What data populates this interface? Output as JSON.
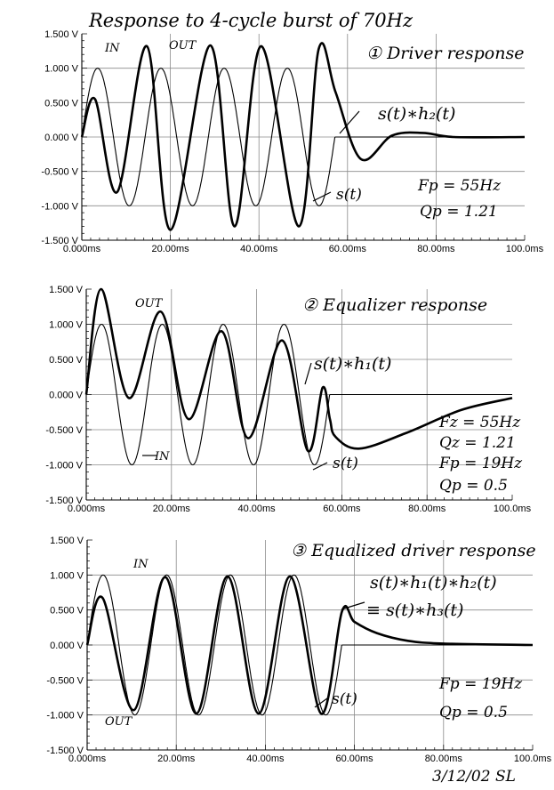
{
  "title": "Response to 4-cycle burst of 70Hz",
  "signature": "3/12/02 SL",
  "chart_data": [
    {
      "type": "line",
      "panel_label": "① Driver response",
      "x_unit": "ms",
      "xlim": [
        0,
        100
      ],
      "ylim": [
        -1.5,
        1.5
      ],
      "x_ticks": [
        "0.000ms",
        "20.00ms",
        "40.00ms",
        "60.00ms",
        "80.00ms",
        "100.0ms"
      ],
      "y_ticks": [
        "1.500 V",
        "1.000 V",
        "0.500 V",
        "0.000 V",
        "-0.500 V",
        "-1.000 V",
        "-1.500 V"
      ],
      "grid": true,
      "series": [
        {
          "name": "IN",
          "label": "s(t)",
          "burst_hz": 70,
          "cycles": 4,
          "amplitude": 1.0
        },
        {
          "name": "OUT",
          "label": "s(t)∗h₂(t)",
          "x": [
            0,
            3,
            8,
            14.7,
            20,
            29,
            34.5,
            40.5,
            49,
            53.5,
            57.3,
            63,
            70,
            77,
            84,
            100
          ],
          "y": [
            0,
            0.55,
            -0.8,
            1.32,
            -1.35,
            1.33,
            -1.3,
            1.32,
            -1.3,
            1.28,
            0.65,
            -0.32,
            0.02,
            0.06,
            0.0,
            0.0
          ]
        }
      ],
      "annotations": [
        "IN",
        "OUT",
        "s(t)∗h₂(t)",
        "s(t)",
        "Fp = 55Hz",
        "Qp = 1.21"
      ]
    },
    {
      "type": "line",
      "panel_label": "② Equalizer response",
      "x_unit": "ms",
      "xlim": [
        0,
        100
      ],
      "ylim": [
        -1.5,
        1.5
      ],
      "x_ticks": [
        "0.000ms",
        "20.00ms",
        "40.00ms",
        "60.00ms",
        "80.00ms",
        "100.0ms"
      ],
      "y_ticks": [
        "1.500 V",
        "1.000 V",
        "0.500 V",
        "0.000 V",
        "-0.500 V",
        "-1.000 V",
        "-1.500 V"
      ],
      "grid": true,
      "series": [
        {
          "name": "IN",
          "label": "s(t)",
          "burst_hz": 70,
          "cycles": 4,
          "amplitude": 1.0
        },
        {
          "name": "OUT",
          "label": "s(t)∗h₁(t)",
          "x": [
            0,
            3.5,
            10,
            17.5,
            24,
            31.8,
            38,
            46,
            52,
            55.5,
            57.2,
            58.5,
            64,
            75,
            88,
            100
          ],
          "y": [
            0,
            1.5,
            -0.05,
            1.18,
            -0.35,
            0.9,
            -0.62,
            0.77,
            -0.8,
            0.1,
            -0.35,
            -0.6,
            -0.77,
            -0.55,
            -0.22,
            -0.05
          ]
        }
      ],
      "annotations": [
        "OUT",
        "IN",
        "s(t)∗h₁(t)",
        "s(t)",
        "Fz = 55Hz",
        "Qz = 1.21",
        "Fp = 19Hz",
        "Qp = 0.5"
      ]
    },
    {
      "type": "line",
      "panel_label": "③ Equalized driver response",
      "x_unit": "ms",
      "xlim": [
        0,
        100
      ],
      "ylim": [
        -1.5,
        1.5
      ],
      "x_ticks": [
        "0.000ms",
        "20.00ms",
        "40.00ms",
        "60.00ms",
        "80.00ms",
        "100.0ms"
      ],
      "y_ticks": [
        "1.500 V",
        "1.000 V",
        "0.500 V",
        "0.000 V",
        "-0.500 V",
        "-1.000 V",
        "-1.500 V"
      ],
      "grid": true,
      "series": [
        {
          "name": "IN",
          "label": "s(t)",
          "burst_hz": 70,
          "cycles": 4,
          "amplitude": 1.0
        },
        {
          "name": "OUT",
          "label": "s(t)∗h₃(t)",
          "x": [
            0,
            3.5,
            10.5,
            17.5,
            24.5,
            31.5,
            38.5,
            45.5,
            52.5,
            57.2,
            60,
            65,
            72,
            80,
            100
          ],
          "y": [
            0,
            0.67,
            -0.93,
            0.97,
            -0.98,
            0.98,
            -0.98,
            0.98,
            -0.98,
            0.48,
            0.33,
            0.17,
            0.06,
            0.02,
            0.0
          ]
        }
      ],
      "annotations": [
        "IN",
        "OUT",
        "s(t)∗h₁(t)∗h₂(t)",
        "≡ s(t)∗h₃(t)",
        "s(t)",
        "Fp = 19Hz",
        "Qp = 0.5"
      ]
    }
  ]
}
